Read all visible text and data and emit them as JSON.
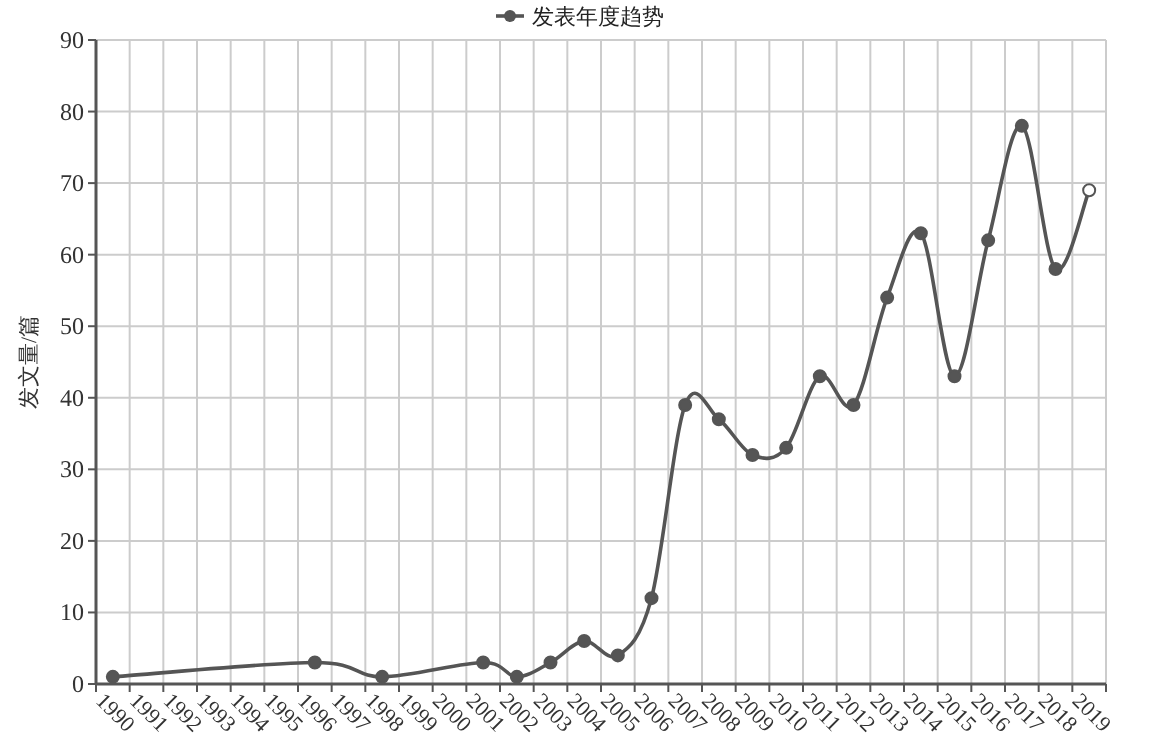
{
  "chart_data": {
    "type": "line",
    "ylabel": "发文量/篇",
    "categories": [
      "1990",
      "1991",
      "1992",
      "1993",
      "1994",
      "1995",
      "1996",
      "1997",
      "1998",
      "1999",
      "2000",
      "2001",
      "2002",
      "2003",
      "2004",
      "2005",
      "2006",
      "2007",
      "2008",
      "2009",
      "2010",
      "2011",
      "2012",
      "2013",
      "2014",
      "2015",
      "2016",
      "2017",
      "2018",
      "2019"
    ],
    "series": [
      {
        "name": "发表年度趋势",
        "color": "#555555",
        "colors": [
          "#555555",
          null,
          null,
          null,
          null,
          null,
          "#555555",
          null,
          "#555555",
          null,
          null,
          "#555555",
          "#555555",
          "#555555",
          "#555555",
          "#555555",
          "#555555",
          "#555555",
          "#555555",
          "#555555",
          "#555555",
          "#555555",
          "#555555",
          "#555555",
          "#555555",
          "#555555",
          "#555555",
          "#555555",
          "#555555",
          "#ffffff"
        ],
        "values": [
          1,
          null,
          null,
          null,
          null,
          null,
          3,
          null,
          1,
          null,
          null,
          3,
          1,
          3,
          6,
          4,
          12,
          39,
          37,
          32,
          33,
          43,
          39,
          54,
          63,
          43,
          62,
          78,
          58,
          69
        ]
      }
    ],
    "ylim": [
      0,
      90
    ],
    "yticks": [
      0,
      10,
      20,
      30,
      40,
      50,
      60,
      70,
      80,
      90
    ],
    "grid": true,
    "legend": "top",
    "marker": "circle",
    "line_style": "solid"
  }
}
